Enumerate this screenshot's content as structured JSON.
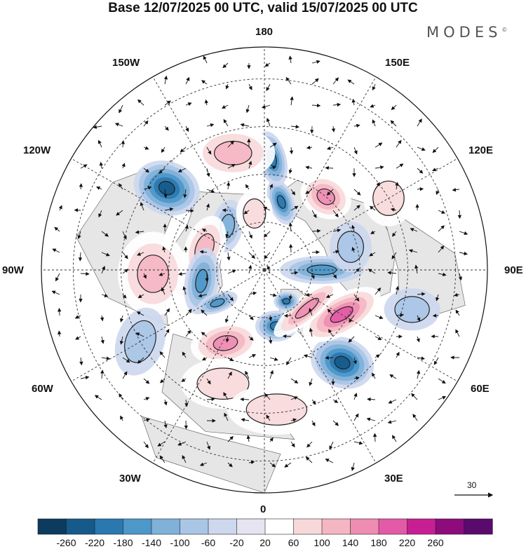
{
  "title": "Base 12/07/2025 00 UTC, valid 15/07/2025 00 UTC",
  "brand": "MODES",
  "brand_mark": "©",
  "longitude_labels": {
    "lon_180": "180",
    "lon_150e": "150E",
    "lon_120e": "120E",
    "lon_90e": "90E",
    "lon_60e": "60E",
    "lon_30e": "30E",
    "lon_0": "0",
    "lon_30w": "30W",
    "lon_60w": "60W",
    "lon_90w": "90W",
    "lon_120w": "120W",
    "lon_150w": "150W"
  },
  "vector_reference": {
    "label": "30"
  },
  "colorbar": {
    "ticks": [
      "-260",
      "-220",
      "-180",
      "-140",
      "-100",
      "-60",
      "-20",
      "20",
      "60",
      "100",
      "140",
      "180",
      "220",
      "260"
    ],
    "colors": [
      "#0c3b5e",
      "#155a8a",
      "#2b78b0",
      "#4d97c9",
      "#7fb1d9",
      "#a9c6e6",
      "#cdd8ef",
      "#e6e4f1",
      "#ffffff",
      "#f8d9da",
      "#f4b6c2",
      "#ee8cb2",
      "#e35aa6",
      "#c71f93",
      "#8e0b7c",
      "#5a0a6c"
    ]
  },
  "anomaly_centers": [
    {
      "lon": -166,
      "lat": 68,
      "value": -200,
      "rx": 34,
      "ry": 18,
      "rot": 70
    },
    {
      "lon": -176,
      "lat": 55,
      "value": -180,
      "rx": 40,
      "ry": 20,
      "rot": 75
    },
    {
      "lon": -140,
      "lat": 60,
      "value": 170,
      "rx": 38,
      "ry": 30,
      "rot": 30
    },
    {
      "lon": 165,
      "lat": 52,
      "value": 120,
      "rx": 60,
      "ry": 38,
      "rot": 0
    },
    {
      "lon": 130,
      "lat": 50,
      "value": -220,
      "rx": 48,
      "ry": 38,
      "rot": 20
    },
    {
      "lon": 140,
      "lat": 72,
      "value": -120,
      "rx": 22,
      "ry": 38,
      "rot": 10
    },
    {
      "lon": 170,
      "lat": 72,
      "value": 60,
      "rx": 26,
      "ry": 34,
      "rot": 0
    },
    {
      "lon": 110,
      "lat": 70,
      "value": 120,
      "rx": 28,
      "ry": 48,
      "rot": 20
    },
    {
      "lon": 88,
      "lat": 55,
      "value": 110,
      "rx": 50,
      "ry": 60,
      "rot": 0
    },
    {
      "lon": 80,
      "lat": 70,
      "value": -140,
      "rx": 24,
      "ry": 48,
      "rot": 10
    },
    {
      "lon": 55,
      "lat": 72,
      "value": -150,
      "rx": 30,
      "ry": 14,
      "rot": -20
    },
    {
      "lon": 60,
      "lat": 45,
      "value": -70,
      "rx": 34,
      "ry": 50,
      "rot": 20
    },
    {
      "lon": 28,
      "lat": 64,
      "value": 150,
      "rx": 50,
      "ry": 30,
      "rot": -10
    },
    {
      "lon": 20,
      "lat": 52,
      "value": 80,
      "rx": 60,
      "ry": 36,
      "rot": 0
    },
    {
      "lon": -5,
      "lat": 46,
      "value": 70,
      "rx": 70,
      "ry": 36,
      "rot": 0
    },
    {
      "lon": -12,
      "lat": 72,
      "value": -190,
      "rx": 30,
      "ry": 22,
      "rot": 0
    },
    {
      "lon": -40,
      "lat": 52,
      "value": -220,
      "rx": 46,
      "ry": 36,
      "rot": 20
    },
    {
      "lon": -60,
      "lat": 62,
      "value": 200,
      "rx": 62,
      "ry": 28,
      "rot": -30
    },
    {
      "lon": -48,
      "lat": 72,
      "value": 150,
      "rx": 60,
      "ry": 18,
      "rot": -40
    },
    {
      "lon": -35,
      "lat": 78,
      "value": -190,
      "rx": 18,
      "ry": 14,
      "rot": 0
    },
    {
      "lon": -90,
      "lat": 72,
      "value": -140,
      "rx": 60,
      "ry": 20,
      "rot": 0
    },
    {
      "lon": -105,
      "lat": 62,
      "value": -90,
      "rx": 30,
      "ry": 36,
      "rot": 0
    },
    {
      "lon": -75,
      "lat": 42,
      "value": -60,
      "rx": 40,
      "ry": 30,
      "rot": 0
    },
    {
      "lon": -120,
      "lat": 45,
      "value": 60,
      "rx": 36,
      "ry": 40,
      "rot": 0
    }
  ]
}
